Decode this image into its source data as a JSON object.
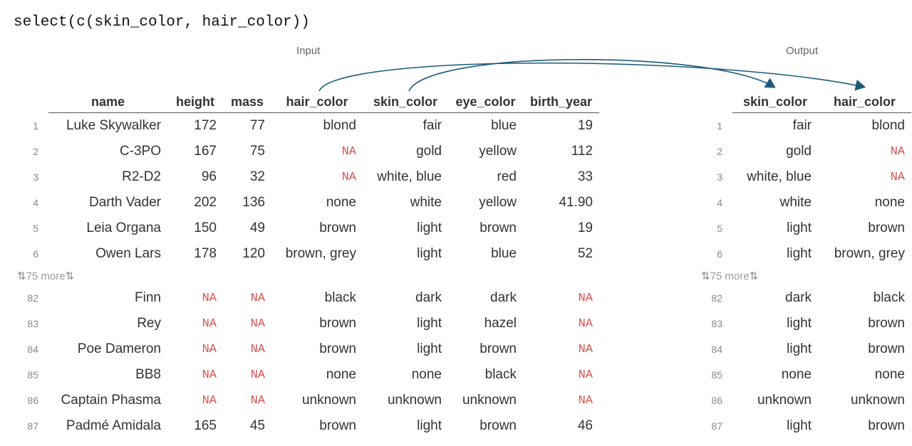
{
  "code": "select(c(skin_color, hair_color))",
  "input": {
    "caption": "Input",
    "columns": [
      "name",
      "height",
      "mass",
      "hair_color",
      "skin_color",
      "eye_color",
      "birth_year"
    ],
    "top_rows": [
      {
        "idx": "1",
        "cells": [
          "Luke Skywalker",
          "172",
          "77",
          "blond",
          "fair",
          "blue",
          "19"
        ]
      },
      {
        "idx": "2",
        "cells": [
          "C-3PO",
          "167",
          "75",
          "NA",
          "gold",
          "yellow",
          "112"
        ]
      },
      {
        "idx": "3",
        "cells": [
          "R2-D2",
          "96",
          "32",
          "NA",
          "white, blue",
          "red",
          "33"
        ]
      },
      {
        "idx": "4",
        "cells": [
          "Darth Vader",
          "202",
          "136",
          "none",
          "white",
          "yellow",
          "41.90"
        ]
      },
      {
        "idx": "5",
        "cells": [
          "Leia Organa",
          "150",
          "49",
          "brown",
          "light",
          "brown",
          "19"
        ]
      },
      {
        "idx": "6",
        "cells": [
          "Owen Lars",
          "178",
          "120",
          "brown, grey",
          "light",
          "blue",
          "52"
        ]
      }
    ],
    "more_label": "75 more",
    "bottom_rows": [
      {
        "idx": "82",
        "cells": [
          "Finn",
          "NA",
          "NA",
          "black",
          "dark",
          "dark",
          "NA"
        ]
      },
      {
        "idx": "83",
        "cells": [
          "Rey",
          "NA",
          "NA",
          "brown",
          "light",
          "hazel",
          "NA"
        ]
      },
      {
        "idx": "84",
        "cells": [
          "Poe Dameron",
          "NA",
          "NA",
          "brown",
          "light",
          "brown",
          "NA"
        ]
      },
      {
        "idx": "85",
        "cells": [
          "BB8",
          "NA",
          "NA",
          "none",
          "none",
          "black",
          "NA"
        ]
      },
      {
        "idx": "86",
        "cells": [
          "Captain Phasma",
          "NA",
          "NA",
          "unknown",
          "unknown",
          "unknown",
          "NA"
        ]
      },
      {
        "idx": "87",
        "cells": [
          "Padmé Amidala",
          "165",
          "45",
          "brown",
          "light",
          "brown",
          "46"
        ]
      }
    ]
  },
  "output": {
    "caption": "Output",
    "columns": [
      "skin_color",
      "hair_color"
    ],
    "top_rows": [
      {
        "idx": "1",
        "cells": [
          "fair",
          "blond"
        ]
      },
      {
        "idx": "2",
        "cells": [
          "gold",
          "NA"
        ]
      },
      {
        "idx": "3",
        "cells": [
          "white, blue",
          "NA"
        ]
      },
      {
        "idx": "4",
        "cells": [
          "white",
          "none"
        ]
      },
      {
        "idx": "5",
        "cells": [
          "light",
          "brown"
        ]
      },
      {
        "idx": "6",
        "cells": [
          "light",
          "brown, grey"
        ]
      }
    ],
    "more_label": "75 more",
    "bottom_rows": [
      {
        "idx": "82",
        "cells": [
          "dark",
          "black"
        ]
      },
      {
        "idx": "83",
        "cells": [
          "light",
          "brown"
        ]
      },
      {
        "idx": "84",
        "cells": [
          "light",
          "brown"
        ]
      },
      {
        "idx": "85",
        "cells": [
          "none",
          "none"
        ]
      },
      {
        "idx": "86",
        "cells": [
          "unknown",
          "unknown"
        ]
      },
      {
        "idx": "87",
        "cells": [
          "light",
          "brown"
        ]
      }
    ]
  },
  "colors": {
    "arrow": "#1d5a78",
    "na": "#d9534f",
    "text": "#333333",
    "index": "#8a8a8a"
  }
}
